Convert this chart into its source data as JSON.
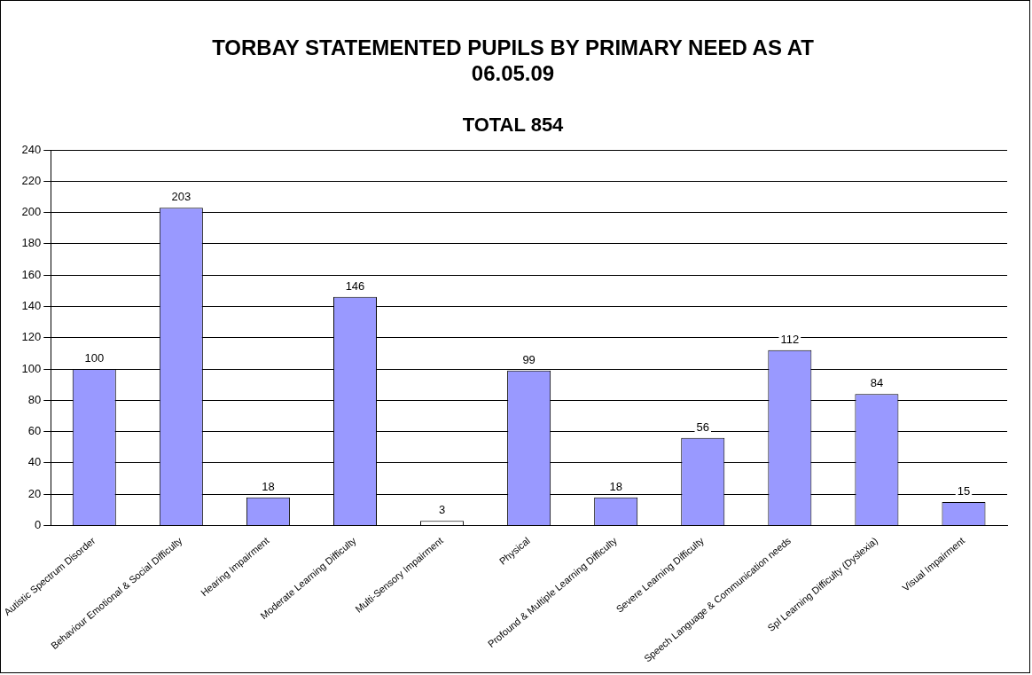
{
  "chart_data": {
    "type": "bar",
    "title": "TORBAY STATEMENTED PUPILS BY PRIMARY NEED AS AT 06.05.09",
    "subtitle": "TOTAL 854",
    "categories": [
      "Autistic Spectrum Disorder",
      "Behaviour Emotional & Social Difficulty",
      "Hearing Impairment",
      "Moderate Learning Difficulty",
      "Multi-Sensory Impairment",
      "Physical",
      "Profound & Multiple Learning Difficulty",
      "Severe Learning Difficulty",
      "Speech Language & Communication needs",
      "Spl Learning Difficulty (Dyslexia)",
      "Visual Impairment"
    ],
    "values": [
      100,
      203,
      18,
      146,
      3,
      99,
      18,
      56,
      112,
      84,
      15
    ],
    "colors": [
      "#9999ff",
      "#9999ff",
      "#9999ff",
      "#9999ff",
      "#ffffff",
      "#9999ff",
      "#9999ff",
      "#9999ff",
      "#9999ff",
      "#9999ff",
      "#9999ff"
    ],
    "ylim": [
      0,
      240
    ],
    "yticks": [
      0,
      20,
      40,
      60,
      80,
      100,
      120,
      140,
      160,
      180,
      200,
      220,
      240
    ],
    "grid": "y",
    "data_labels": true
  }
}
